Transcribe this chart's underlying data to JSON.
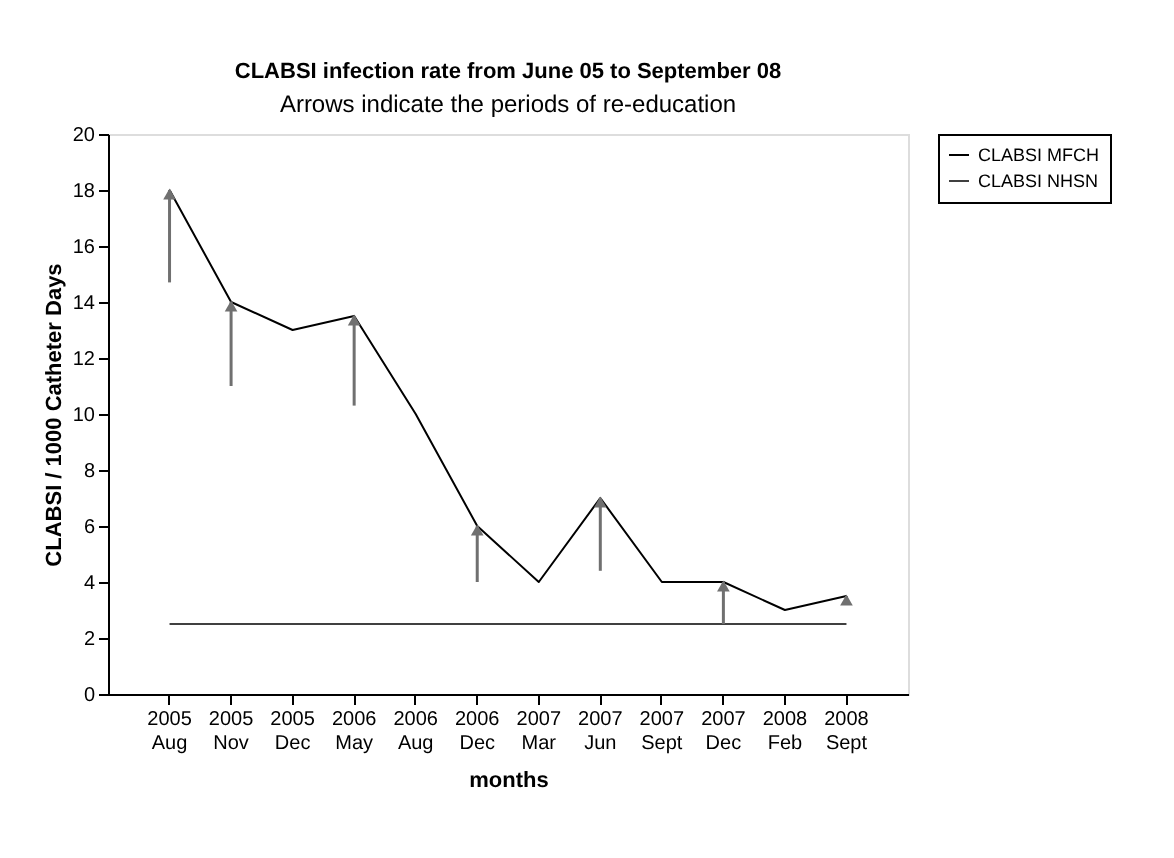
{
  "chart_data": {
    "type": "line",
    "title": "CLABSI infection rate from June 05 to September 08",
    "subtitle": "Arrows indicate the periods of re-education",
    "xlabel": "months",
    "ylabel": "CLABSI / 1000 Catheter Days",
    "categories": [
      "2005 Aug",
      "2005 Nov",
      "2005 Dec",
      "2006 May",
      "2006 Aug",
      "2006 Dec",
      "2007 Mar",
      "2007 Jun",
      "2007 Sept",
      "2007 Dec",
      "2008 Feb",
      "2008 Sept"
    ],
    "series": [
      {
        "name": "CLABSI MFCH",
        "color": "#000000",
        "values": [
          18,
          14,
          13,
          13.5,
          10,
          6,
          4,
          7,
          4,
          4,
          3,
          3.5
        ]
      },
      {
        "name": "CLABSI NHSN",
        "color": "#404040",
        "values": [
          2.5,
          2.5,
          2.5,
          2.5,
          2.5,
          2.5,
          2.5,
          2.5,
          2.5,
          2.5,
          2.5,
          2.5
        ]
      },
      {
        "type": "scatter",
        "marker": "triangle",
        "color": "#707070",
        "values": [
          18,
          14,
          null,
          13.5,
          null,
          6,
          null,
          7,
          null,
          4,
          null,
          3.5
        ],
        "errors": [
          [
            14.7,
            18
          ],
          [
            11,
            14
          ],
          null,
          [
            10.3,
            13.5
          ],
          null,
          [
            4,
            6
          ],
          null,
          [
            4.4,
            7
          ],
          null,
          [
            2.5,
            4
          ],
          null,
          [
            3.2,
            3.5
          ]
        ]
      }
    ],
    "ylim": [
      0,
      20
    ],
    "yticks": [
      0,
      2,
      4,
      6,
      8,
      10,
      12,
      14,
      16,
      18,
      20
    ],
    "grid": false,
    "legend": "right",
    "marker": "none",
    "line_style": "solid"
  }
}
